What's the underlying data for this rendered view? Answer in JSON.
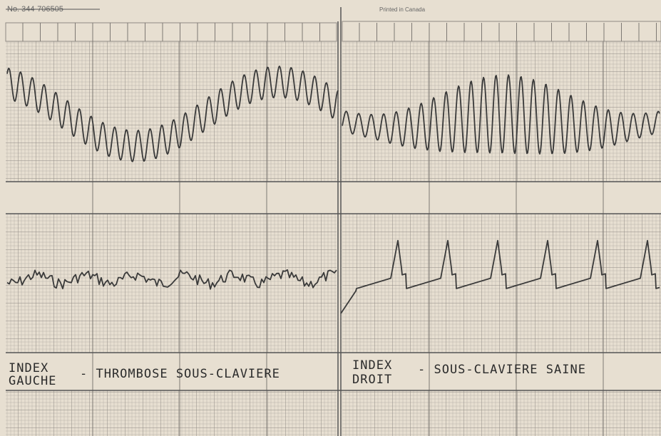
{
  "header": {
    "serial": "No. 344-706505",
    "printer": "Printed in Canada"
  },
  "left_label": {
    "line1": "INDEX",
    "line2": "GAUCHE",
    "rest": "- THROMBOSE SOUS-CLAVIERE"
  },
  "right_label": {
    "line1": "INDEX",
    "line2": "DROIT",
    "rest": "- SOUS-CLAVIERE SAINE"
  }
}
